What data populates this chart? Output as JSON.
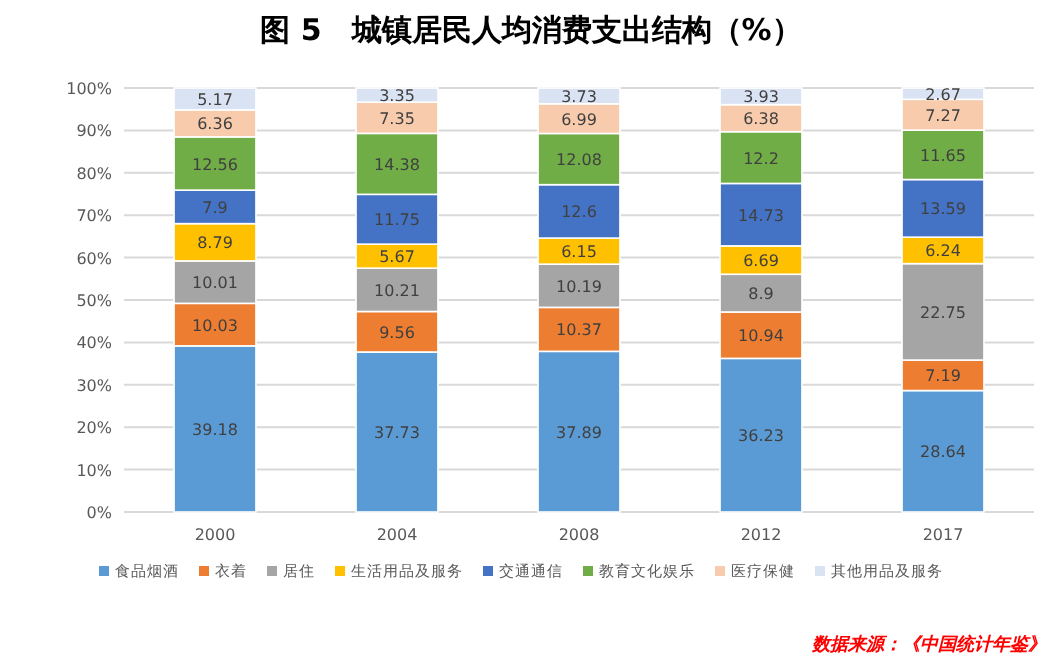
{
  "chart_data": {
    "type": "bar",
    "title": "图 5　城镇居民人均消费支出结构（%）",
    "categories": [
      "2000",
      "2004",
      "2008",
      "2012",
      "2017"
    ],
    "stacked": true,
    "ylim": [
      0,
      100
    ],
    "yticks": [
      {
        "value": 0,
        "label": "0%"
      },
      {
        "value": 10,
        "label": "10%"
      },
      {
        "value": 20,
        "label": "20%"
      },
      {
        "value": 30,
        "label": "30%"
      },
      {
        "value": 40,
        "label": "40%"
      },
      {
        "value": 50,
        "label": "50%"
      },
      {
        "value": 60,
        "label": "60%"
      },
      {
        "value": 70,
        "label": "70%"
      },
      {
        "value": 80,
        "label": "80%"
      },
      {
        "value": 90,
        "label": "90%"
      },
      {
        "value": 100,
        "label": "100%"
      }
    ],
    "grid": "y",
    "legend": "bottom",
    "data_labels": true,
    "series": [
      {
        "name": "食品烟酒",
        "color": "#5b9bd5",
        "values": [
          39.18,
          37.73,
          37.89,
          36.23,
          28.64
        ]
      },
      {
        "name": "衣着",
        "color": "#ed7d31",
        "values": [
          10.03,
          9.56,
          10.37,
          10.94,
          7.19
        ]
      },
      {
        "name": "居住",
        "color": "#a5a5a5",
        "values": [
          10.01,
          10.21,
          10.19,
          8.9,
          22.75
        ]
      },
      {
        "name": "生活用品及服务",
        "color": "#ffc000",
        "values": [
          8.79,
          5.67,
          6.15,
          6.69,
          6.24
        ]
      },
      {
        "name": "交通通信",
        "color": "#4472c4",
        "values": [
          7.9,
          11.75,
          12.6,
          14.73,
          13.59
        ]
      },
      {
        "name": "教育文化娱乐",
        "color": "#70ad47",
        "values": [
          12.56,
          14.38,
          12.08,
          12.2,
          11.65
        ]
      },
      {
        "name": "医疗保健",
        "color": "#f8cbad",
        "values": [
          6.36,
          7.35,
          6.99,
          6.38,
          7.27
        ]
      },
      {
        "name": "其他用品及服务",
        "color": "#dae3f3",
        "values": [
          5.17,
          3.35,
          3.73,
          3.93,
          2.67
        ]
      }
    ],
    "annotations": [
      "数据来源：《中国统计年鉴》"
    ]
  }
}
